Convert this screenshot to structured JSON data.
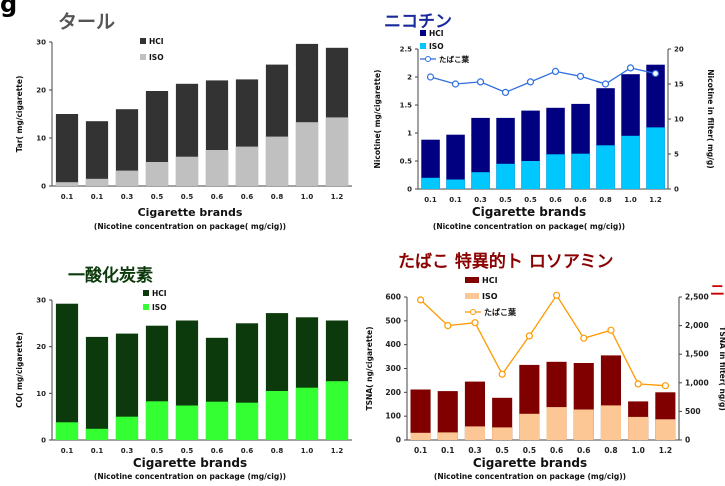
{
  "page_letter": "g",
  "chart_data": [
    {
      "type": "bar",
      "title": "タール",
      "xlabel": "Cigarette brands",
      "xsublabel": "(Nicotine concentration on package( mg/cig))",
      "ylabel": "Tar( mg/cigarette)",
      "ylim": [
        0,
        30
      ],
      "yticks": [
        "0",
        "10",
        "20",
        "30"
      ],
      "categories": [
        "0.1",
        "0.1",
        "0.3",
        "0.5",
        "0.5",
        "0.6",
        "0.6",
        "0.8",
        "1.0",
        "1.2"
      ],
      "series": [
        {
          "name": "HCI",
          "color": "#333333",
          "values": [
            15,
            13.5,
            16,
            19.8,
            21.3,
            22,
            22.2,
            25.3,
            29.6,
            28.8
          ]
        },
        {
          "name": "ISO",
          "color": "#c0c0c0",
          "values": [
            0.8,
            1.5,
            3.2,
            5,
            6.1,
            7.5,
            8.2,
            10.3,
            13.3,
            14.3
          ]
        }
      ],
      "legend": "top-center",
      "grid": false
    },
    {
      "type": "bar",
      "title": "ニコチン",
      "xlabel": "Cigarette brands",
      "xsublabel": "(Nicotine concentration on package( mg/cig))",
      "ylabel": "Nicotine( mg/cigarette)",
      "y2label": "Nicotine in filter( mg/g)",
      "ylim": [
        0,
        2.5
      ],
      "yticks": [
        "0",
        "0.5",
        "1",
        "1.5",
        "2",
        "2.5"
      ],
      "y2lim": [
        0,
        20
      ],
      "y2ticks": [
        "0",
        "5",
        "10",
        "15",
        "20"
      ],
      "categories": [
        "0.1",
        "0.1",
        "0.3",
        "0.5",
        "0.5",
        "0.6",
        "0.6",
        "0.8",
        "1.0",
        "1.2"
      ],
      "series": [
        {
          "name": "HCI",
          "color": "#000080",
          "values": [
            0.88,
            0.97,
            1.27,
            1.27,
            1.4,
            1.45,
            1.52,
            1.8,
            2.05,
            2.22
          ]
        },
        {
          "name": "ISO",
          "color": "#00c8ff",
          "values": [
            0.2,
            0.17,
            0.3,
            0.45,
            0.5,
            0.62,
            0.63,
            0.78,
            0.95,
            1.1
          ]
        }
      ],
      "line_series": {
        "name": "たばこ葉",
        "color": "#3070e0",
        "axis": "right",
        "values": [
          16,
          15,
          15.3,
          13.8,
          15.3,
          16.8,
          16.1,
          15,
          17.3,
          16.5
        ]
      },
      "legend": "top-left",
      "grid": false
    },
    {
      "type": "bar",
      "title": "一酸化炭素",
      "xlabel": "Cigarette brands",
      "xsublabel": "(Nicotine concentration on package (mg/cig))",
      "ylabel": "CO( mg/cigarette)",
      "ylim": [
        0,
        30
      ],
      "yticks": [
        "0",
        "10",
        "20",
        "30"
      ],
      "categories": [
        "0.1",
        "0.1",
        "0.3",
        "0.5",
        "0.5",
        "0.6",
        "0.6",
        "0.8",
        "1.0",
        "1.2"
      ],
      "series": [
        {
          "name": "HCI",
          "color": "#0c3a0c",
          "values": [
            29.2,
            22.1,
            22.8,
            24.5,
            25.6,
            21.9,
            25,
            27.2,
            26.3,
            25.6
          ]
        },
        {
          "name": "ISO",
          "color": "#33ff33",
          "values": [
            3.8,
            2.4,
            5,
            8.3,
            7.4,
            8.2,
            8,
            10.5,
            11.2,
            12.6
          ]
        }
      ],
      "legend": "top-center",
      "grid": false
    },
    {
      "type": "bar",
      "title": "たばこ 特異的ト ロソアミン",
      "xlabel": "Cigarette brands",
      "xsublabel": "(Nicotine concentration on package (mg/cig))",
      "ylabel": "TSNA( ng/cigarette)",
      "y2label": "TSNA in filter( ng/g)",
      "ylim": [
        0,
        600
      ],
      "yticks": [
        "0",
        "100",
        "200",
        "300",
        "400",
        "500",
        "600"
      ],
      "y2lim": [
        0,
        2500
      ],
      "y2ticks": [
        "0",
        "500",
        "1,000",
        "1,500",
        "2,000",
        "2,500"
      ],
      "categories": [
        "0.1",
        "0.1",
        "0.3",
        "0.5",
        "0.5",
        "0.6",
        "0.6",
        "0.8",
        "1.0",
        "1.2"
      ],
      "series": [
        {
          "name": "HCI",
          "color": "#800000",
          "values": [
            212,
            205,
            245,
            177,
            315,
            328,
            323,
            355,
            162,
            200
          ]
        },
        {
          "name": "ISO",
          "color": "#fcc794",
          "values": [
            30,
            32,
            57,
            53,
            110,
            138,
            128,
            145,
            97,
            87
          ]
        }
      ],
      "line_series": {
        "name": "たばこ葉",
        "color": "#ff9900",
        "axis": "right",
        "values": [
          2450,
          2000,
          2050,
          1150,
          1820,
          2530,
          1780,
          1920,
          980,
          950
        ]
      },
      "legend": "top-left",
      "grid": false,
      "edge_text": "ニ"
    }
  ]
}
